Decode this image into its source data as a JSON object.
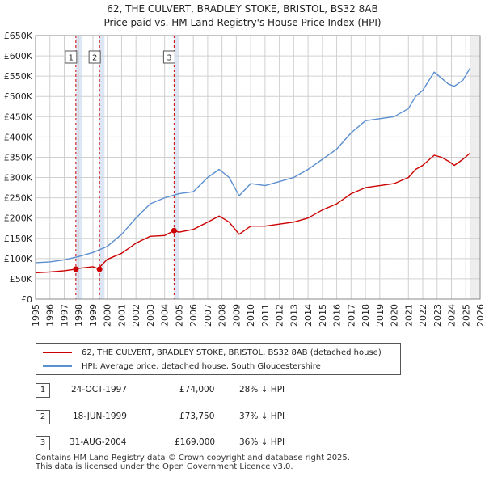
{
  "header": {
    "title_line1": "62, THE CULVERT, BRADLEY STOKE, BRISTOL, BS32 8AB",
    "title_line2": "Price paid vs. HM Land Registry's House Price Index (HPI)"
  },
  "colors": {
    "property": "#cc0000",
    "hpi": "#5b8fd0",
    "shade": "#dde6f4",
    "grid": "#d0d0d0"
  },
  "chart_data": {
    "type": "line",
    "title": "62, THE CULVERT, BRADLEY STOKE, BRISTOL, BS32 8AB - Price paid vs. HM Land Registry's House Price Index (HPI)",
    "xlabel": "",
    "ylabel": "",
    "xlim": [
      1995,
      2026
    ],
    "ylim": [
      0,
      650000
    ],
    "y_ticks": [
      0,
      50000,
      100000,
      150000,
      200000,
      250000,
      300000,
      350000,
      400000,
      450000,
      500000,
      550000,
      600000,
      650000
    ],
    "y_tick_labels": [
      "£0",
      "£50K",
      "£100K",
      "£150K",
      "£200K",
      "£250K",
      "£300K",
      "£350K",
      "£400K",
      "£450K",
      "£500K",
      "£550K",
      "£600K",
      "£650K"
    ],
    "x_ticks": [
      1995,
      1996,
      1997,
      1998,
      1999,
      2000,
      2001,
      2002,
      2003,
      2004,
      2005,
      2006,
      2007,
      2008,
      2009,
      2010,
      2011,
      2012,
      2013,
      2014,
      2015,
      2016,
      2017,
      2018,
      2019,
      2020,
      2021,
      2022,
      2023,
      2024,
      2025,
      2026
    ],
    "x_tick_labels": [
      "1995",
      "1996",
      "1997",
      "1998",
      "1999",
      "2000",
      "2001",
      "2002",
      "2003",
      "2004",
      "2005",
      "2006",
      "2007",
      "2008",
      "2009",
      "2010",
      "2011",
      "2012",
      "2013",
      "2014",
      "2015",
      "2016",
      "2017",
      "2018",
      "2019",
      "2020",
      "2021",
      "2022",
      "2023",
      "2024",
      "2025",
      "2026"
    ],
    "grid": true,
    "forecast_start": 2025.3,
    "series": [
      {
        "name": "62, THE CULVERT, BRADLEY STOKE, BRISTOL, BS32 8AB (detached house)",
        "color": "#cc0000",
        "x": [
          1995.0,
          1996.0,
          1997.0,
          1997.81,
          1998.0,
          1998.5,
          1999.0,
          1999.46,
          1999.5,
          2000.0,
          2001.0,
          2002.0,
          2003.0,
          2004.0,
          2004.66,
          2005.0,
          2006.0,
          2007.0,
          2007.8,
          2008.5,
          2009.2,
          2010.0,
          2011.0,
          2012.0,
          2013.0,
          2014.0,
          2015.0,
          2016.0,
          2017.0,
          2018.0,
          2019.0,
          2020.0,
          2021.0,
          2021.5,
          2022.0,
          2022.8,
          2023.3,
          2023.8,
          2024.2,
          2024.8,
          2025.3
        ],
        "values": [
          65000,
          67000,
          70000,
          74000,
          76000,
          78000,
          80000,
          73750,
          80000,
          98000,
          113000,
          138000,
          155000,
          157000,
          169000,
          165000,
          172000,
          190000,
          205000,
          190000,
          160000,
          180000,
          180000,
          185000,
          190000,
          200000,
          220000,
          235000,
          260000,
          275000,
          280000,
          285000,
          300000,
          320000,
          330000,
          355000,
          350000,
          340000,
          330000,
          345000,
          360000
        ]
      },
      {
        "name": "HPI: Average price, detached house, South Gloucestershire",
        "color": "#5b8fd0",
        "x": [
          1995.0,
          1996.0,
          1997.0,
          1998.0,
          1999.0,
          2000.0,
          2001.0,
          2002.0,
          2003.0,
          2004.0,
          2005.0,
          2006.0,
          2007.0,
          2007.8,
          2008.5,
          2009.2,
          2010.0,
          2011.0,
          2012.0,
          2013.0,
          2014.0,
          2015.0,
          2016.0,
          2017.0,
          2018.0,
          2019.0,
          2020.0,
          2021.0,
          2021.5,
          2022.0,
          2022.8,
          2023.3,
          2023.8,
          2024.2,
          2024.8,
          2025.3
        ],
        "values": [
          90000,
          92000,
          97000,
          105000,
          115000,
          130000,
          160000,
          200000,
          235000,
          250000,
          260000,
          265000,
          300000,
          320000,
          300000,
          255000,
          285000,
          280000,
          290000,
          300000,
          320000,
          345000,
          370000,
          410000,
          440000,
          445000,
          450000,
          470000,
          500000,
          515000,
          560000,
          545000,
          530000,
          525000,
          540000,
          570000
        ]
      }
    ],
    "sales": [
      {
        "label": "1",
        "x": 1997.81,
        "price": 74000
      },
      {
        "label": "2",
        "x": 1999.46,
        "price": 73750
      },
      {
        "label": "3",
        "x": 2004.66,
        "price": 169000
      }
    ]
  },
  "legend": {
    "property_label": "62, THE CULVERT, BRADLEY STOKE, BRISTOL, BS32 8AB (detached house)",
    "hpi_label": "HPI: Average price, detached house, South Gloucestershire"
  },
  "sales_table": [
    {
      "num": "1",
      "date": "24-OCT-1997",
      "price": "£74,000",
      "hpi": "28% ↓ HPI"
    },
    {
      "num": "2",
      "date": "18-JUN-1999",
      "price": "£73,750",
      "hpi": "37% ↓ HPI"
    },
    {
      "num": "3",
      "date": "31-AUG-2004",
      "price": "£169,000",
      "hpi": "36% ↓ HPI"
    }
  ],
  "footer": {
    "line1": "Contains HM Land Registry data © Crown copyright and database right 2025.",
    "line2": "This data is licensed under the Open Government Licence v3.0."
  }
}
